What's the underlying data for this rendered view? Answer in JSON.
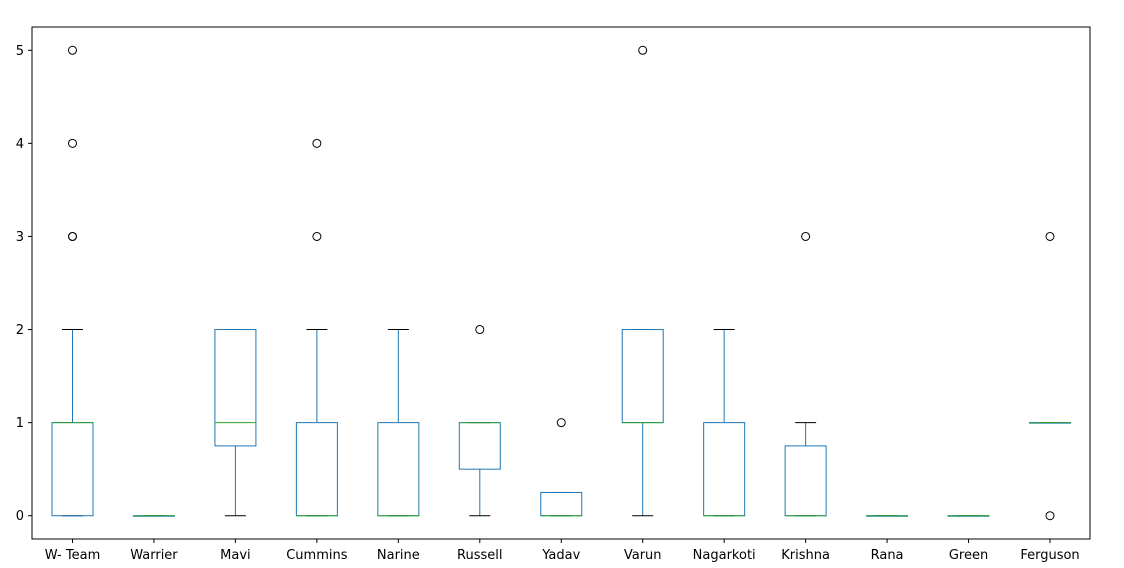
{
  "chart_data": {
    "type": "boxplot",
    "title": "",
    "xlabel": "",
    "ylabel": "",
    "ylim": [
      -0.25,
      5.25
    ],
    "yticks": [
      0,
      1,
      2,
      3,
      4,
      5
    ],
    "grid": false,
    "colors": {
      "box": "#1f77b4",
      "median": "#2ca02c",
      "whisker_cap": "#000000",
      "flier": "#000000"
    },
    "boxes": [
      {
        "label": "W- Team",
        "whislo": 0,
        "q1": 0,
        "med": 1,
        "q3": 1,
        "whishi": 2,
        "fliers": [
          3,
          3,
          4,
          5
        ]
      },
      {
        "label": "Warrier",
        "whislo": 0,
        "q1": 0,
        "med": 0,
        "q3": 0,
        "whishi": 0,
        "fliers": []
      },
      {
        "label": "Mavi",
        "whislo": 0,
        "q1": 0.75,
        "med": 1,
        "q3": 2,
        "whishi": 2,
        "fliers": []
      },
      {
        "label": "Cummins",
        "whislo": 0,
        "q1": 0,
        "med": 0,
        "q3": 1,
        "whishi": 2,
        "fliers": [
          3,
          4
        ]
      },
      {
        "label": "Narine",
        "whislo": 0,
        "q1": 0,
        "med": 0,
        "q3": 1,
        "whishi": 2,
        "fliers": []
      },
      {
        "label": "Russell",
        "whislo": 0,
        "q1": 0.5,
        "med": 1,
        "q3": 1,
        "whishi": 1,
        "fliers": [
          2
        ]
      },
      {
        "label": "Yadav",
        "whislo": 0,
        "q1": 0,
        "med": 0,
        "q3": 0.25,
        "whishi": 0.25,
        "fliers": [
          1
        ]
      },
      {
        "label": "Varun",
        "whislo": 0,
        "q1": 1,
        "med": 1,
        "q3": 2,
        "whishi": 2,
        "fliers": [
          5
        ]
      },
      {
        "label": "Nagarkoti",
        "whislo": 0,
        "q1": 0,
        "med": 0,
        "q3": 1,
        "whishi": 2,
        "fliers": []
      },
      {
        "label": "Krishna",
        "whislo": 0,
        "q1": 0,
        "med": 0,
        "q3": 0.75,
        "whishi": 1,
        "fliers": [
          3
        ]
      },
      {
        "label": "Rana",
        "whislo": 0,
        "q1": 0,
        "med": 0,
        "q3": 0,
        "whishi": 0,
        "fliers": []
      },
      {
        "label": "Green",
        "whislo": 0,
        "q1": 0,
        "med": 0,
        "q3": 0,
        "whishi": 0,
        "fliers": []
      },
      {
        "label": "Ferguson",
        "whislo": 1,
        "q1": 1,
        "med": 1,
        "q3": 1,
        "whishi": 1,
        "fliers": [
          0,
          3
        ]
      }
    ]
  }
}
